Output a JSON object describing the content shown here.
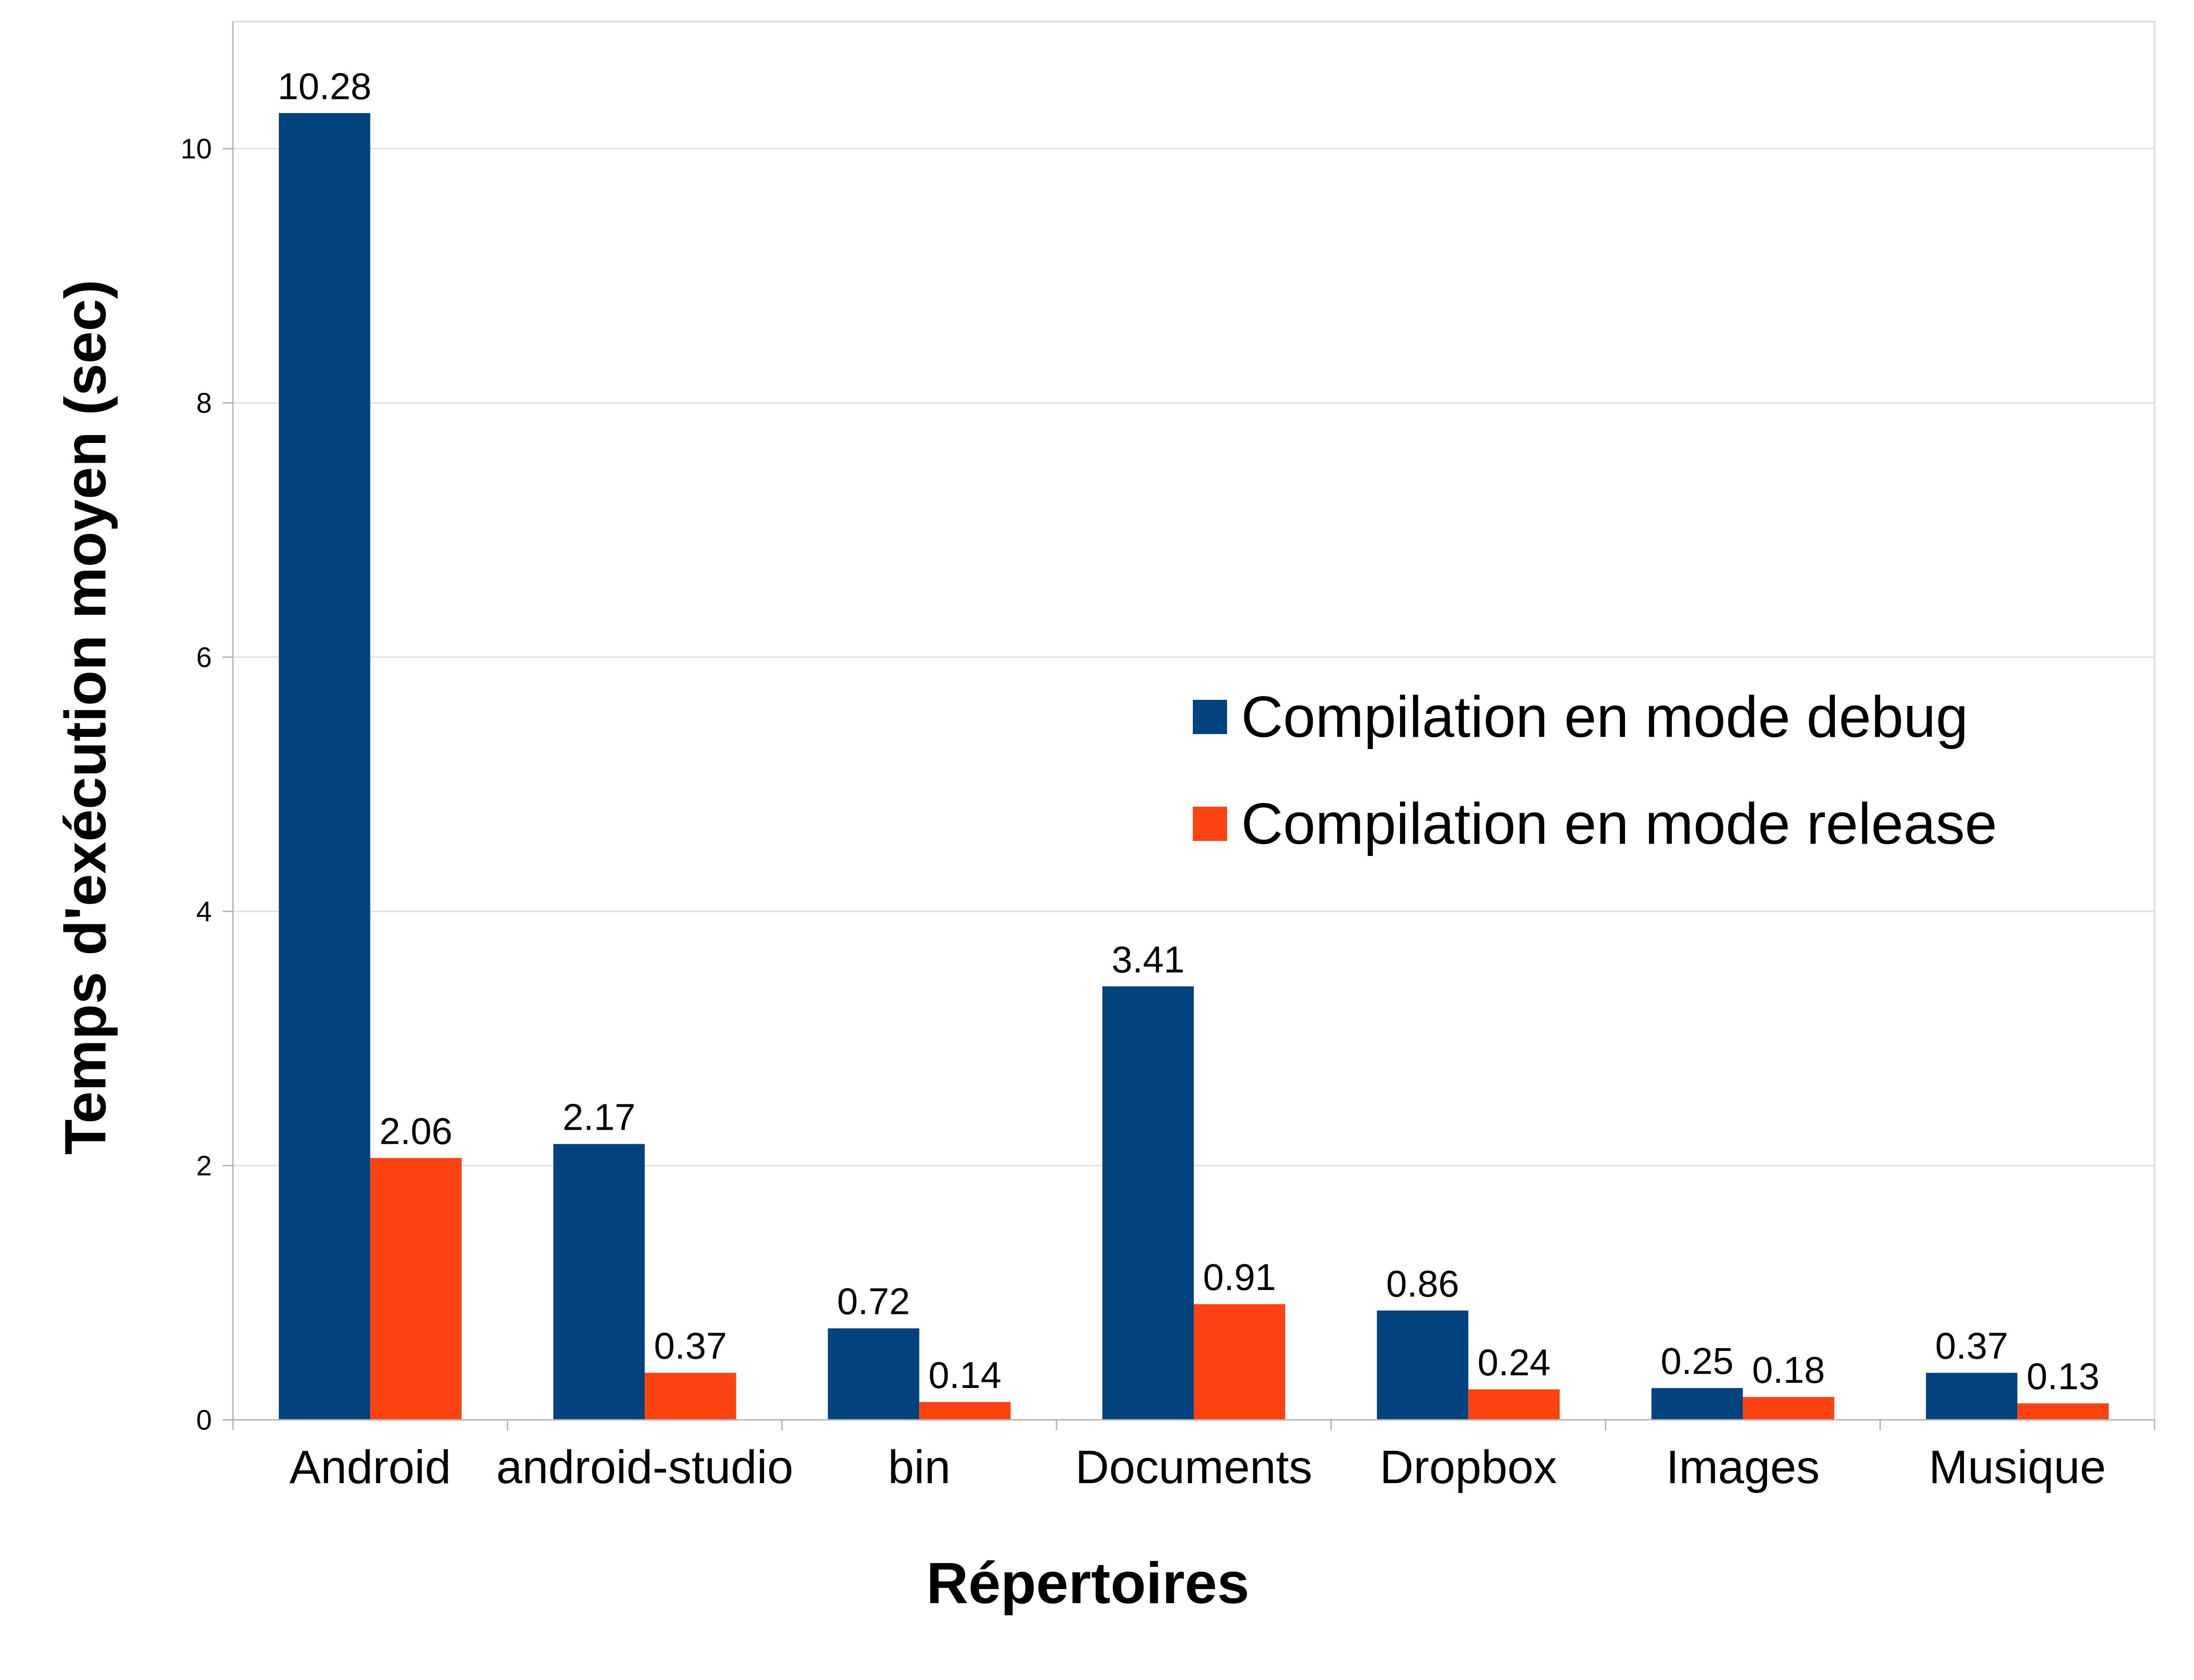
{
  "chart_data": {
    "type": "bar",
    "xlabel": "Répertoires",
    "ylabel": "Temps d'exécution moyen (sec)",
    "ylim": [
      0,
      11
    ],
    "yticks": [
      0,
      2,
      4,
      6,
      8,
      10
    ],
    "grid": true,
    "legend_position": "center-right",
    "categories": [
      "Android",
      "android-studio",
      "bin",
      "Documents",
      "Dropbox",
      "Images",
      "Musique"
    ],
    "series": [
      {
        "name": "Compilation en mode debug",
        "color": "#02437f",
        "values": [
          10.28,
          2.17,
          0.72,
          3.41,
          0.86,
          0.25,
          0.37
        ],
        "labels": [
          "10.28",
          "2.17",
          "0.72",
          "3.41",
          "0.86",
          "0.25",
          "0.37"
        ]
      },
      {
        "name": "Compilation en mode release",
        "color": "#fe4313",
        "values": [
          2.06,
          0.37,
          0.14,
          0.91,
          0.24,
          0.18,
          0.13
        ],
        "labels": [
          "2.06",
          "0.37",
          "0.14",
          "0.91",
          "0.24",
          "0.18",
          "0.13"
        ]
      }
    ]
  }
}
